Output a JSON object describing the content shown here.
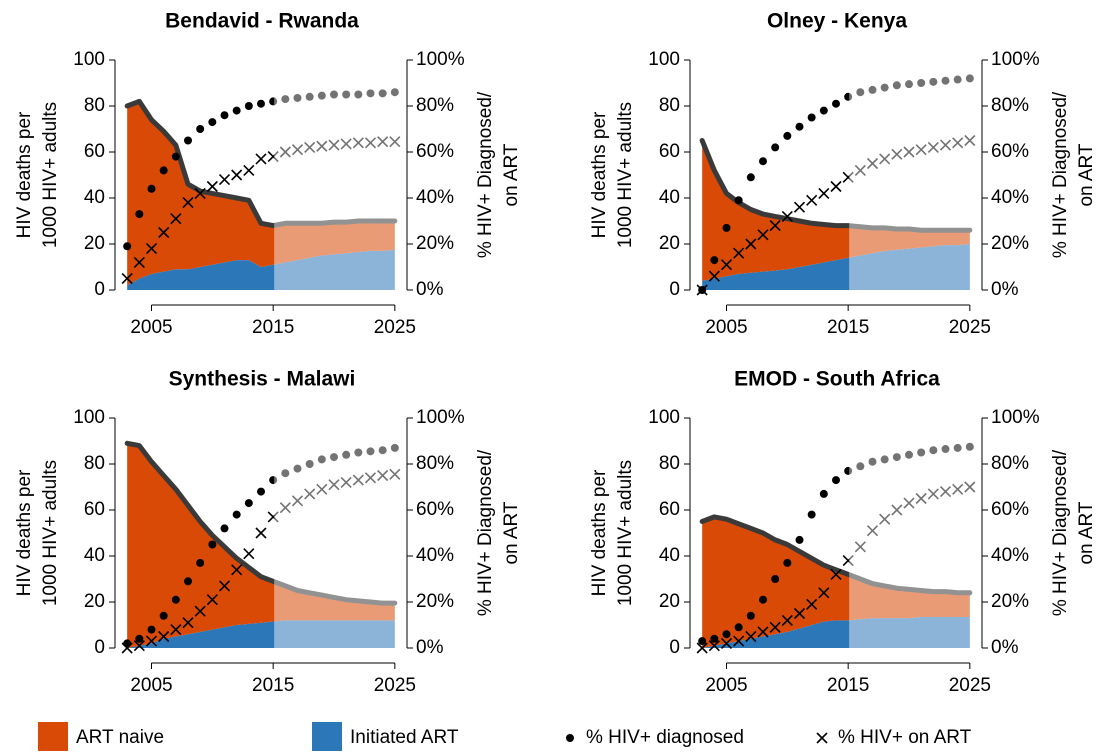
{
  "chart_data": [
    {
      "type": "area",
      "title": "Bendavid - Rwanda",
      "ylabel": [
        "HIV deaths per",
        "1000 HIV+ adults"
      ],
      "y2label": [
        "% HIV+ Diagnosed/",
        "on ART"
      ],
      "x": [
        2003,
        2004,
        2005,
        2006,
        2007,
        2008,
        2009,
        2010,
        2011,
        2012,
        2013,
        2014,
        2015,
        2016,
        2017,
        2018,
        2019,
        2020,
        2021,
        2022,
        2023,
        2024,
        2025
      ],
      "xlim": [
        2002,
        2026
      ],
      "xticks": [
        2005,
        2015,
        2025
      ],
      "ylim": [
        0,
        100
      ],
      "yticks": [
        0,
        20,
        40,
        60,
        80,
        100
      ],
      "y2lim": [
        0,
        100
      ],
      "y2ticks": [
        {
          "value": 0,
          "label": "0%"
        },
        {
          "value": 20,
          "label": "20%"
        },
        {
          "value": 40,
          "label": "40%"
        },
        {
          "value": 60,
          "label": "60%"
        },
        {
          "value": 80,
          "label": "80%"
        },
        {
          "value": 100,
          "label": "100%"
        }
      ],
      "projection_start": 2015,
      "series": [
        {
          "name": "ART naive",
          "color": "#d84a05",
          "values": [
            78,
            77,
            67,
            61,
            54,
            37,
            33,
            31,
            29,
            27,
            26,
            19,
            17,
            17,
            16,
            15,
            14,
            14,
            13.5,
            13.5,
            13,
            13,
            12.5
          ]
        },
        {
          "name": "Initiated ART",
          "color": "#2c77b8",
          "values": [
            2,
            5,
            7,
            8,
            9,
            9,
            10,
            11,
            12,
            13,
            13,
            10,
            11,
            12,
            13,
            14,
            15,
            15.5,
            16,
            16.5,
            17,
            17,
            17.5
          ]
        },
        {
          "name": "% HIV+ diagnosed",
          "axis": "y2",
          "marker": "dot",
          "color": "#000000",
          "values": [
            19,
            33,
            44,
            52,
            58,
            65,
            70,
            73,
            76,
            78,
            80,
            81,
            82,
            83,
            83.5,
            84,
            84.5,
            85,
            85,
            85,
            85.5,
            85.5,
            86
          ]
        },
        {
          "name": "% HIV+ on ART",
          "axis": "y2",
          "marker": "cross",
          "color": "#000000",
          "values": [
            5,
            12,
            18,
            25,
            31,
            38,
            42,
            45,
            48,
            50,
            52,
            57,
            58,
            60,
            61,
            62,
            62.5,
            63,
            63.5,
            64,
            64,
            64.5,
            64.5
          ]
        }
      ]
    },
    {
      "type": "area",
      "title": "Olney - Kenya",
      "ylabel": [
        "HIV deaths per",
        "1000 HIV+ adults"
      ],
      "y2label": [
        "% HIV+ Diagnosed/",
        "on ART"
      ],
      "x": [
        2003,
        2004,
        2005,
        2006,
        2007,
        2008,
        2009,
        2010,
        2011,
        2012,
        2013,
        2014,
        2015,
        2016,
        2017,
        2018,
        2019,
        2020,
        2021,
        2022,
        2023,
        2024,
        2025
      ],
      "xlim": [
        2002,
        2026
      ],
      "xticks": [
        2005,
        2015,
        2025
      ],
      "ylim": [
        0,
        100
      ],
      "yticks": [
        0,
        20,
        40,
        60,
        80,
        100
      ],
      "y2lim": [
        0,
        100
      ],
      "y2ticks": [
        {
          "value": 0,
          "label": "0%"
        },
        {
          "value": 20,
          "label": "20%"
        },
        {
          "value": 40,
          "label": "40%"
        },
        {
          "value": 60,
          "label": "60%"
        },
        {
          "value": 80,
          "label": "80%"
        },
        {
          "value": 100,
          "label": "100%"
        }
      ],
      "projection_start": 2015,
      "series": [
        {
          "name": "ART naive",
          "color": "#d84a05",
          "values": [
            61,
            47,
            36,
            31,
            27.5,
            25,
            23.5,
            22,
            20,
            18,
            16.5,
            15,
            14,
            12.5,
            11,
            10,
            9,
            8.5,
            7.5,
            7,
            6.5,
            6.5,
            6
          ]
        },
        {
          "name": "Initiated ART",
          "color": "#2c77b8",
          "values": [
            4,
            5,
            6,
            7,
            7.5,
            8,
            8.5,
            9,
            10,
            11,
            12,
            13,
            14,
            15,
            16,
            17,
            17.5,
            18,
            18.5,
            19,
            19.5,
            19.5,
            20
          ]
        },
        {
          "name": "% HIV+ diagnosed",
          "axis": "y2",
          "marker": "dot",
          "color": "#000000",
          "values": [
            0,
            13,
            27,
            39,
            49,
            56,
            62,
            67,
            71,
            75,
            78,
            81,
            84,
            86,
            87,
            88,
            89,
            89.5,
            90,
            90.5,
            91,
            91.5,
            92
          ]
        },
        {
          "name": "% HIV+ on ART",
          "axis": "y2",
          "marker": "cross",
          "color": "#000000",
          "values": [
            0,
            6,
            11,
            16,
            20,
            24,
            28,
            32,
            36,
            39,
            42,
            45,
            49,
            52,
            55,
            57,
            59,
            60,
            61,
            62,
            63,
            64,
            65
          ]
        }
      ]
    },
    {
      "type": "area",
      "title": "Synthesis - Malawi",
      "ylabel": [
        "HIV deaths per",
        "1000 HIV+ adults"
      ],
      "y2label": [
        "% HIV+ Diagnosed/",
        "on ART"
      ],
      "x": [
        2003,
        2004,
        2005,
        2006,
        2007,
        2008,
        2009,
        2010,
        2011,
        2012,
        2013,
        2014,
        2015,
        2016,
        2017,
        2018,
        2019,
        2020,
        2021,
        2022,
        2023,
        2024,
        2025
      ],
      "xlim": [
        2002,
        2026
      ],
      "xticks": [
        2005,
        2015,
        2025
      ],
      "ylim": [
        0,
        100
      ],
      "yticks": [
        0,
        20,
        40,
        60,
        80,
        100
      ],
      "y2lim": [
        0,
        100
      ],
      "y2ticks": [
        {
          "value": 0,
          "label": "0%"
        },
        {
          "value": 20,
          "label": "20%"
        },
        {
          "value": 40,
          "label": "40%"
        },
        {
          "value": 60,
          "label": "60%"
        },
        {
          "value": 80,
          "label": "80%"
        },
        {
          "value": 100,
          "label": "100%"
        }
      ],
      "projection_start": 2015,
      "series": [
        {
          "name": "ART naive",
          "color": "#d84a05",
          "values": [
            89,
            87,
            79,
            71,
            64,
            56,
            48,
            41,
            35,
            29,
            24.5,
            20,
            17.5,
            15,
            13,
            12,
            11,
            10,
            9,
            8.5,
            8,
            7.5,
            7.5
          ]
        },
        {
          "name": "Initiated ART",
          "color": "#2c77b8",
          "values": [
            0,
            1,
            2,
            4,
            5,
            6,
            7,
            8,
            9,
            10,
            10.5,
            11,
            11.5,
            12,
            12,
            12,
            12,
            12,
            12,
            12,
            12,
            12,
            12
          ]
        },
        {
          "name": "% HIV+ diagnosed",
          "axis": "y2",
          "marker": "dot",
          "color": "#000000",
          "values": [
            2,
            4,
            8,
            14,
            21,
            29,
            37,
            45,
            52,
            58,
            63,
            68,
            73,
            76,
            78,
            80,
            82,
            83,
            84,
            85,
            85.5,
            86,
            87
          ]
        },
        {
          "name": "% HIV+ on ART",
          "axis": "y2",
          "marker": "cross",
          "color": "#000000",
          "values": [
            0,
            1,
            3,
            5,
            8,
            11,
            16,
            21,
            27,
            34,
            41,
            50,
            57,
            61,
            64,
            67,
            69,
            71,
            72,
            73,
            74,
            75,
            75.5
          ]
        }
      ]
    },
    {
      "type": "area",
      "title": "EMOD - South Africa",
      "ylabel": [
        "HIV deaths per",
        "1000 HIV+ adults"
      ],
      "y2label": [
        "% HIV+ Diagnosed/",
        "on ART"
      ],
      "x": [
        2003,
        2004,
        2005,
        2006,
        2007,
        2008,
        2009,
        2010,
        2011,
        2012,
        2013,
        2014,
        2015,
        2016,
        2017,
        2018,
        2019,
        2020,
        2021,
        2022,
        2023,
        2024,
        2025
      ],
      "xlim": [
        2002,
        2026
      ],
      "xticks": [
        2005,
        2015,
        2025
      ],
      "ylim": [
        0,
        100
      ],
      "yticks": [
        0,
        20,
        40,
        60,
        80,
        100
      ],
      "y2lim": [
        0,
        100
      ],
      "y2ticks": [
        {
          "value": 0,
          "label": "0%"
        },
        {
          "value": 20,
          "label": "20%"
        },
        {
          "value": 40,
          "label": "40%"
        },
        {
          "value": 60,
          "label": "60%"
        },
        {
          "value": 80,
          "label": "80%"
        },
        {
          "value": 100,
          "label": "100%"
        }
      ],
      "projection_start": 2015,
      "series": [
        {
          "name": "ART naive",
          "color": "#d84a05",
          "values": [
            55,
            56,
            54,
            51,
            48,
            45,
            41,
            38,
            33.5,
            29,
            24.5,
            22,
            20,
            17.5,
            15,
            14,
            13,
            12.5,
            11.5,
            11,
            11,
            10.5,
            10.5
          ]
        },
        {
          "name": "Initiated ART",
          "color": "#2c77b8",
          "values": [
            0,
            1,
            2,
            3,
            4,
            5,
            6,
            7,
            8.5,
            10,
            11.5,
            12,
            12,
            12.5,
            13,
            13,
            13,
            13,
            13.5,
            13.5,
            13.5,
            13.5,
            13.5
          ]
        },
        {
          "name": "% HIV+ diagnosed",
          "axis": "y2",
          "marker": "dot",
          "color": "#000000",
          "values": [
            3,
            4,
            6,
            9,
            14,
            21,
            30,
            37,
            47,
            58,
            67,
            73,
            77,
            79,
            81,
            82,
            83,
            84,
            85,
            86,
            86.5,
            87,
            87.5
          ]
        },
        {
          "name": "% HIV+ on ART",
          "axis": "y2",
          "marker": "cross",
          "color": "#000000",
          "values": [
            0,
            1,
            2,
            3,
            5,
            7,
            9,
            12,
            15,
            19,
            24,
            32,
            38,
            44,
            51,
            56,
            60,
            63,
            65,
            67,
            68,
            69,
            70
          ]
        }
      ]
    }
  ]
}
